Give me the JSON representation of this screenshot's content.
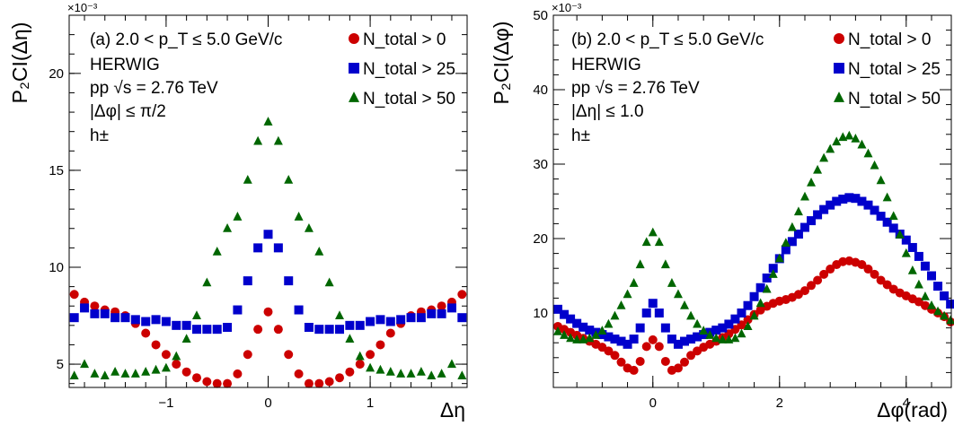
{
  "colors": {
    "red": "#cc0000",
    "blue": "#0000cc",
    "green": "#006600",
    "axis": "#000000"
  },
  "chart_data": [
    {
      "type": "scatter",
      "panel_label": "(a) 2.0 < p_T ≤ 5.0 GeV/c",
      "info_lines": [
        "HERWIG",
        "pp √s = 2.76 TeV",
        "|Δφ| ≤ π/2",
        "h±"
      ],
      "exponent_label": "×10⁻³",
      "xlabel": "Δη",
      "ylabel": "P₂CI(Δη)",
      "xlim": [
        -1.95,
        1.95
      ],
      "ylim": [
        3.8,
        23
      ],
      "xticks": [
        -1,
        0,
        1
      ],
      "yticks": [
        5,
        10,
        15,
        20
      ],
      "legend_position": "top-right",
      "series": [
        {
          "name": "N_total > 0",
          "marker": "circle",
          "color": "#cc0000",
          "x": [
            -1.9,
            -1.8,
            -1.7,
            -1.6,
            -1.5,
            -1.4,
            -1.3,
            -1.2,
            -1.1,
            -1.0,
            -0.9,
            -0.8,
            -0.7,
            -0.6,
            -0.5,
            -0.4,
            -0.3,
            -0.2,
            -0.1,
            0.0,
            0.1,
            0.2,
            0.3,
            0.4,
            0.5,
            0.6,
            0.7,
            0.8,
            0.9,
            1.0,
            1.1,
            1.2,
            1.3,
            1.4,
            1.5,
            1.6,
            1.7,
            1.8,
            1.9
          ],
          "y": [
            8.6,
            8.2,
            8.0,
            7.8,
            7.7,
            7.5,
            7.1,
            6.6,
            6.0,
            5.5,
            5.0,
            4.6,
            4.3,
            4.1,
            4.0,
            4.0,
            4.5,
            5.5,
            6.8,
            7.7,
            6.8,
            5.5,
            4.5,
            4.0,
            4.0,
            4.1,
            4.3,
            4.6,
            5.0,
            5.5,
            6.0,
            6.6,
            7.1,
            7.5,
            7.7,
            7.8,
            8.0,
            8.2,
            8.6
          ]
        },
        {
          "name": "N_total > 25",
          "marker": "square",
          "color": "#0000cc",
          "x": [
            -1.9,
            -1.8,
            -1.7,
            -1.6,
            -1.5,
            -1.4,
            -1.3,
            -1.2,
            -1.1,
            -1.0,
            -0.9,
            -0.8,
            -0.7,
            -0.6,
            -0.5,
            -0.4,
            -0.3,
            -0.2,
            -0.1,
            0.0,
            0.1,
            0.2,
            0.3,
            0.4,
            0.5,
            0.6,
            0.7,
            0.8,
            0.9,
            1.0,
            1.1,
            1.2,
            1.3,
            1.4,
            1.5,
            1.6,
            1.7,
            1.8,
            1.9
          ],
          "y": [
            7.4,
            7.9,
            7.6,
            7.6,
            7.4,
            7.4,
            7.3,
            7.2,
            7.3,
            7.2,
            7.0,
            7.0,
            6.8,
            6.8,
            6.8,
            6.9,
            7.8,
            9.3,
            11.0,
            11.7,
            11.0,
            9.3,
            7.8,
            6.9,
            6.8,
            6.8,
            6.8,
            7.0,
            7.0,
            7.2,
            7.3,
            7.2,
            7.3,
            7.4,
            7.4,
            7.6,
            7.6,
            7.9,
            7.4
          ]
        },
        {
          "name": "N_total > 50",
          "marker": "triangle",
          "color": "#006600",
          "x": [
            -1.9,
            -1.8,
            -1.7,
            -1.6,
            -1.5,
            -1.4,
            -1.3,
            -1.2,
            -1.1,
            -1.0,
            -0.9,
            -0.8,
            -0.7,
            -0.6,
            -0.5,
            -0.4,
            -0.3,
            -0.2,
            -0.1,
            0.0,
            0.1,
            0.2,
            0.3,
            0.4,
            0.5,
            0.6,
            0.7,
            0.8,
            0.9,
            1.0,
            1.1,
            1.2,
            1.3,
            1.4,
            1.5,
            1.6,
            1.7,
            1.8,
            1.9
          ],
          "y": [
            4.4,
            5.0,
            4.5,
            4.4,
            4.6,
            4.5,
            4.5,
            4.6,
            4.7,
            4.8,
            5.4,
            6.3,
            7.5,
            9.2,
            10.8,
            12.0,
            12.6,
            14.5,
            16.5,
            17.5,
            16.5,
            14.5,
            12.6,
            12.0,
            10.8,
            9.2,
            7.5,
            6.3,
            5.4,
            4.8,
            4.7,
            4.6,
            4.5,
            4.5,
            4.6,
            4.4,
            4.5,
            5.0,
            4.4
          ]
        }
      ]
    },
    {
      "type": "scatter",
      "panel_label": "(b) 2.0 < p_T ≤ 5.0 GeV/c",
      "info_lines": [
        "HERWIG",
        "pp √s = 2.76 TeV",
        "|Δη| ≤ 1.0",
        "h±"
      ],
      "exponent_label": "×10⁻³",
      "xlabel": "Δφ(rad)",
      "ylabel": "P₂CI(Δφ)",
      "xlim": [
        -1.571,
        4.712
      ],
      "ylim": [
        0,
        50
      ],
      "xticks": [
        0,
        2,
        4
      ],
      "yticks": [
        10,
        20,
        30,
        40,
        50
      ],
      "legend_position": "top-right",
      "series": [
        {
          "name": "N_total > 0",
          "marker": "circle",
          "color": "#cc0000",
          "x": [
            -1.5,
            -1.4,
            -1.3,
            -1.2,
            -1.1,
            -1.0,
            -0.9,
            -0.8,
            -0.7,
            -0.6,
            -0.5,
            -0.4,
            -0.3,
            -0.2,
            -0.1,
            0.0,
            0.1,
            0.2,
            0.3,
            0.4,
            0.5,
            0.6,
            0.7,
            0.8,
            0.9,
            1.0,
            1.1,
            1.2,
            1.3,
            1.4,
            1.5,
            1.6,
            1.7,
            1.8,
            1.9,
            2.0,
            2.1,
            2.2,
            2.3,
            2.4,
            2.5,
            2.6,
            2.7,
            2.8,
            2.9,
            3.0,
            3.1,
            3.2,
            3.3,
            3.4,
            3.5,
            3.6,
            3.7,
            3.8,
            3.9,
            4.0,
            4.1,
            4.2,
            4.3,
            4.4,
            4.5,
            4.6,
            4.7
          ],
          "y": [
            8.2,
            7.8,
            7.4,
            7.0,
            6.6,
            6.2,
            5.8,
            5.4,
            4.9,
            4.3,
            3.4,
            2.6,
            2.3,
            3.5,
            5.5,
            6.4,
            5.5,
            3.5,
            2.3,
            2.6,
            3.4,
            4.3,
            4.9,
            5.4,
            5.8,
            6.2,
            6.7,
            7.2,
            7.8,
            8.4,
            9.1,
            9.8,
            10.4,
            10.9,
            11.3,
            11.6,
            11.8,
            12.1,
            12.5,
            13.0,
            13.7,
            14.4,
            15.2,
            15.9,
            16.5,
            16.9,
            17.0,
            16.8,
            16.5,
            15.9,
            15.2,
            14.4,
            13.8,
            13.2,
            12.7,
            12.3,
            11.9,
            11.5,
            11.0,
            10.5,
            10.0,
            9.5,
            8.8
          ]
        },
        {
          "name": "N_total > 25",
          "marker": "square",
          "color": "#0000cc",
          "x": [
            -1.5,
            -1.4,
            -1.3,
            -1.2,
            -1.1,
            -1.0,
            -0.9,
            -0.8,
            -0.7,
            -0.6,
            -0.5,
            -0.4,
            -0.3,
            -0.2,
            -0.1,
            0.0,
            0.1,
            0.2,
            0.3,
            0.4,
            0.5,
            0.6,
            0.7,
            0.8,
            0.9,
            1.0,
            1.1,
            1.2,
            1.3,
            1.4,
            1.5,
            1.6,
            1.7,
            1.8,
            1.9,
            2.0,
            2.1,
            2.2,
            2.3,
            2.4,
            2.5,
            2.6,
            2.7,
            2.8,
            2.9,
            3.0,
            3.1,
            3.2,
            3.3,
            3.4,
            3.5,
            3.6,
            3.7,
            3.8,
            3.9,
            4.0,
            4.1,
            4.2,
            4.3,
            4.4,
            4.5,
            4.6,
            4.7
          ],
          "y": [
            10.5,
            9.8,
            9.2,
            8.6,
            8.1,
            7.7,
            7.4,
            7.1,
            6.8,
            6.5,
            6.2,
            5.8,
            6.5,
            8.0,
            10.0,
            11.3,
            10.0,
            8.0,
            6.5,
            5.8,
            6.2,
            6.5,
            6.8,
            7.1,
            7.4,
            7.7,
            8.0,
            8.5,
            9.2,
            10.0,
            11.0,
            12.2,
            13.4,
            14.7,
            16.0,
            17.3,
            18.5,
            19.6,
            20.6,
            21.5,
            22.4,
            23.2,
            23.9,
            24.5,
            25.0,
            25.3,
            25.5,
            25.4,
            25.0,
            24.5,
            23.8,
            23.0,
            22.2,
            21.4,
            20.6,
            19.8,
            18.8,
            17.6,
            16.3,
            15.0,
            13.6,
            12.3,
            11.2
          ]
        },
        {
          "name": "N_total > 50",
          "marker": "triangle",
          "color": "#006600",
          "x": [
            -1.5,
            -1.4,
            -1.3,
            -1.2,
            -1.1,
            -1.0,
            -0.9,
            -0.8,
            -0.7,
            -0.6,
            -0.5,
            -0.4,
            -0.3,
            -0.2,
            -0.1,
            0.0,
            0.1,
            0.2,
            0.3,
            0.4,
            0.5,
            0.6,
            0.7,
            0.8,
            0.9,
            1.0,
            1.1,
            1.2,
            1.3,
            1.4,
            1.5,
            1.6,
            1.7,
            1.8,
            1.9,
            2.0,
            2.1,
            2.2,
            2.3,
            2.4,
            2.5,
            2.6,
            2.7,
            2.8,
            2.9,
            3.0,
            3.1,
            3.2,
            3.3,
            3.4,
            3.5,
            3.6,
            3.7,
            3.8,
            3.9,
            4.0,
            4.1,
            4.2,
            4.3,
            4.4,
            4.5,
            4.6,
            4.7
          ],
          "y": [
            7.5,
            7.0,
            6.6,
            6.4,
            6.4,
            6.6,
            7.0,
            7.6,
            8.5,
            9.6,
            11.0,
            12.5,
            14.0,
            16.5,
            19.5,
            20.8,
            19.5,
            16.5,
            14.0,
            12.5,
            11.0,
            9.6,
            8.5,
            7.6,
            7.0,
            6.6,
            6.4,
            6.4,
            6.6,
            7.2,
            8.2,
            9.6,
            11.3,
            13.2,
            15.2,
            17.3,
            19.4,
            21.5,
            23.6,
            25.6,
            27.5,
            29.2,
            30.8,
            32.0,
            33.0,
            33.6,
            33.8,
            33.4,
            32.6,
            31.4,
            29.8,
            27.8,
            25.5,
            23.0,
            20.5,
            18.0,
            15.7,
            13.8,
            12.2,
            11.0,
            10.2,
            9.6,
            9.0
          ]
        }
      ]
    }
  ]
}
